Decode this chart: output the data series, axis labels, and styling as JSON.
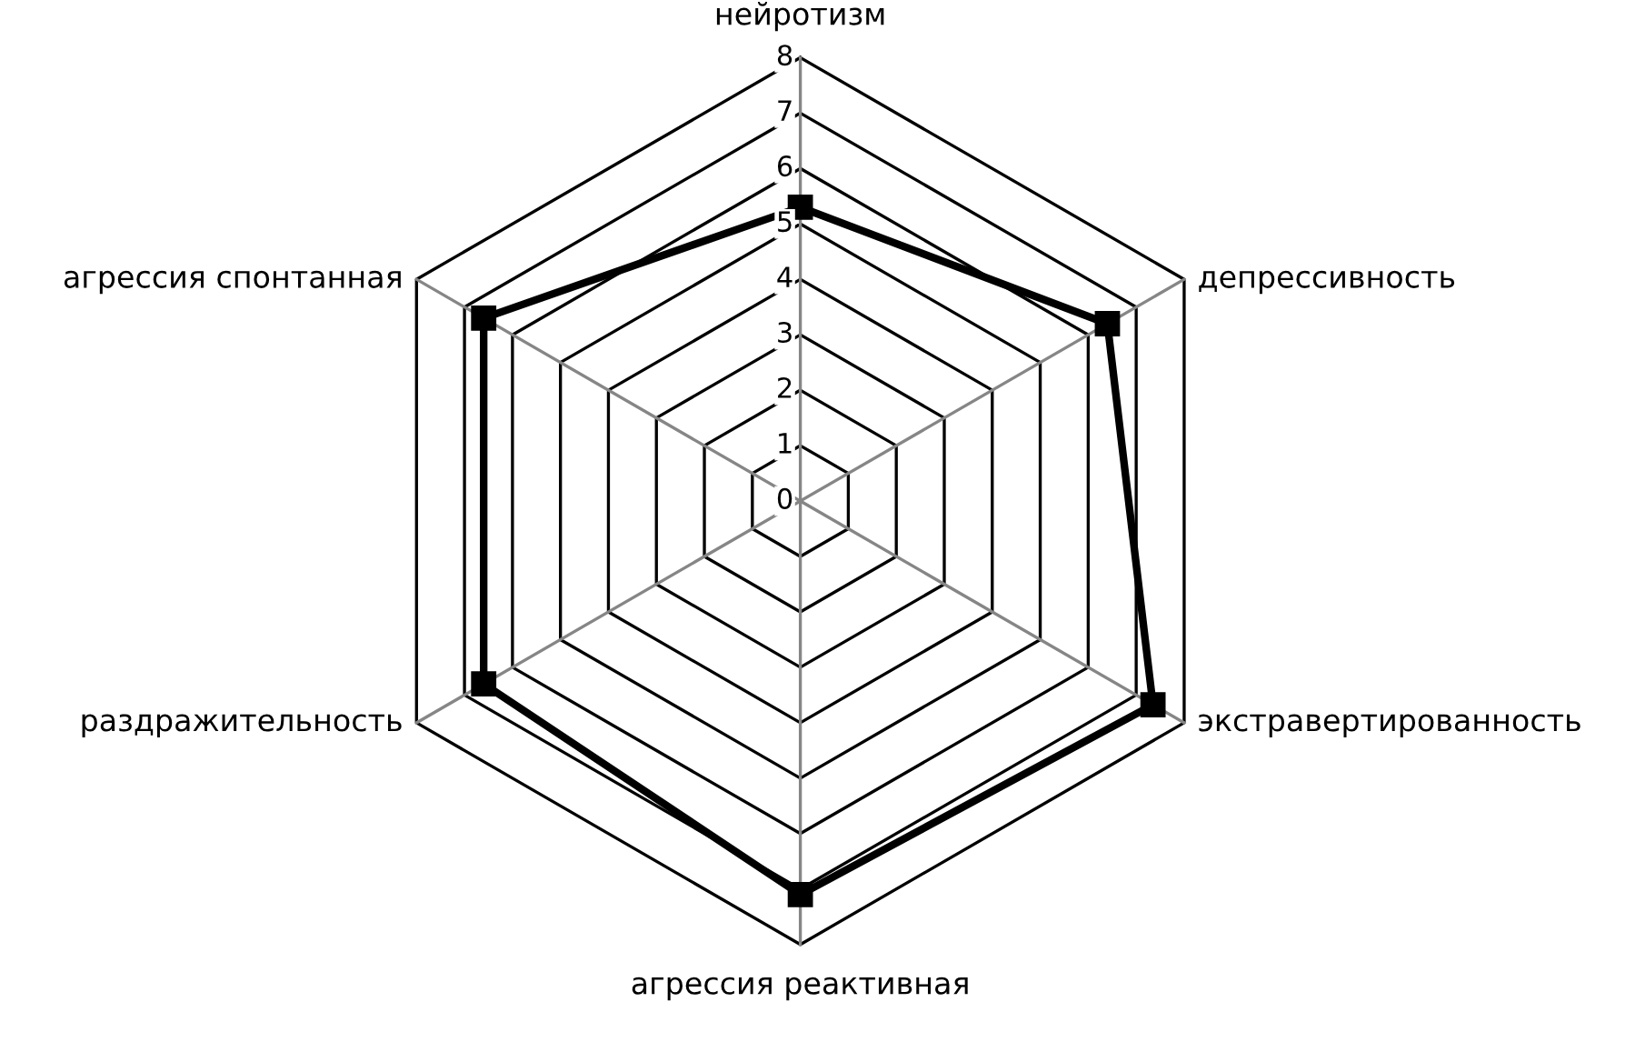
{
  "chart_data": {
    "type": "radar",
    "categories": [
      "нейротизм",
      "депрессивность",
      "экстравертированность",
      "агрессия реактивная",
      "раздражительность",
      "агрессия спонтанная"
    ],
    "series": [
      {
        "color": "#000000",
        "values": [
          5.3,
          6.4,
          7.35,
          7.1,
          6.6,
          6.6
        ]
      }
    ],
    "ylim": [
      0,
      8
    ],
    "yticks": [
      0,
      1,
      2,
      3,
      4,
      5,
      6,
      7,
      8
    ],
    "marker": "square",
    "line_style": "solid",
    "grid": true
  }
}
